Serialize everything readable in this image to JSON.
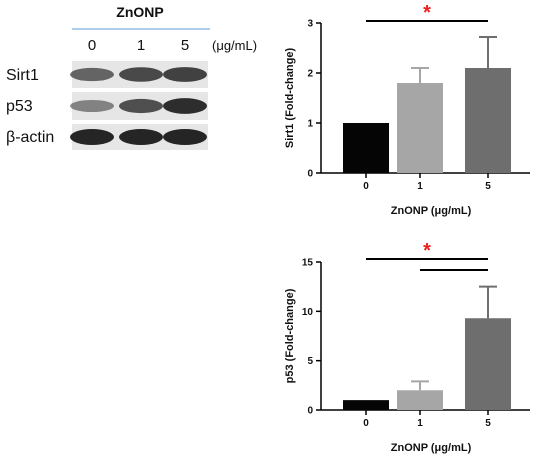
{
  "western_blot": {
    "group_label": "ZnONP",
    "concentrations": [
      "0",
      "1",
      "5"
    ],
    "unit": "(μg/mL)",
    "proteins": [
      "Sirt1",
      "p53",
      "β-actin"
    ]
  },
  "colors": {
    "bar_0": "#050505",
    "bar_1": "#a6a6a6",
    "bar_5": "#6e6e6e",
    "significance": "#e8201f",
    "blot_band": "#1a1a1a",
    "blot_background": "#e6e6e6"
  },
  "chart_data": [
    {
      "type": "bar",
      "categories": [
        "0",
        "1",
        "5"
      ],
      "values": [
        1.0,
        1.8,
        2.1
      ],
      "errors": [
        0,
        0.3,
        0.62
      ],
      "ylabel": "Sirt1 (Fold-change)",
      "xlabel": "ZnONP (μg/mL)",
      "ylim": [
        0,
        3
      ],
      "yticks": [
        "0",
        "1",
        "2",
        "3"
      ],
      "significance": [
        {
          "from": "0",
          "to": "5",
          "label": "*"
        }
      ],
      "grid": false
    },
    {
      "type": "bar",
      "categories": [
        "0",
        "1",
        "5"
      ],
      "values": [
        1.0,
        2.0,
        9.3
      ],
      "errors": [
        0,
        0.9,
        3.2
      ],
      "ylabel": "p53 (Fold-change)",
      "xlabel": "ZnONP (μg/mL)",
      "ylim": [
        0,
        15
      ],
      "yticks": [
        "0",
        "5",
        "10",
        "15"
      ],
      "significance": [
        {
          "from": "0",
          "to": "5",
          "label": "*"
        },
        {
          "from": "1",
          "to": "5",
          "label": ""
        }
      ],
      "grid": false
    }
  ]
}
